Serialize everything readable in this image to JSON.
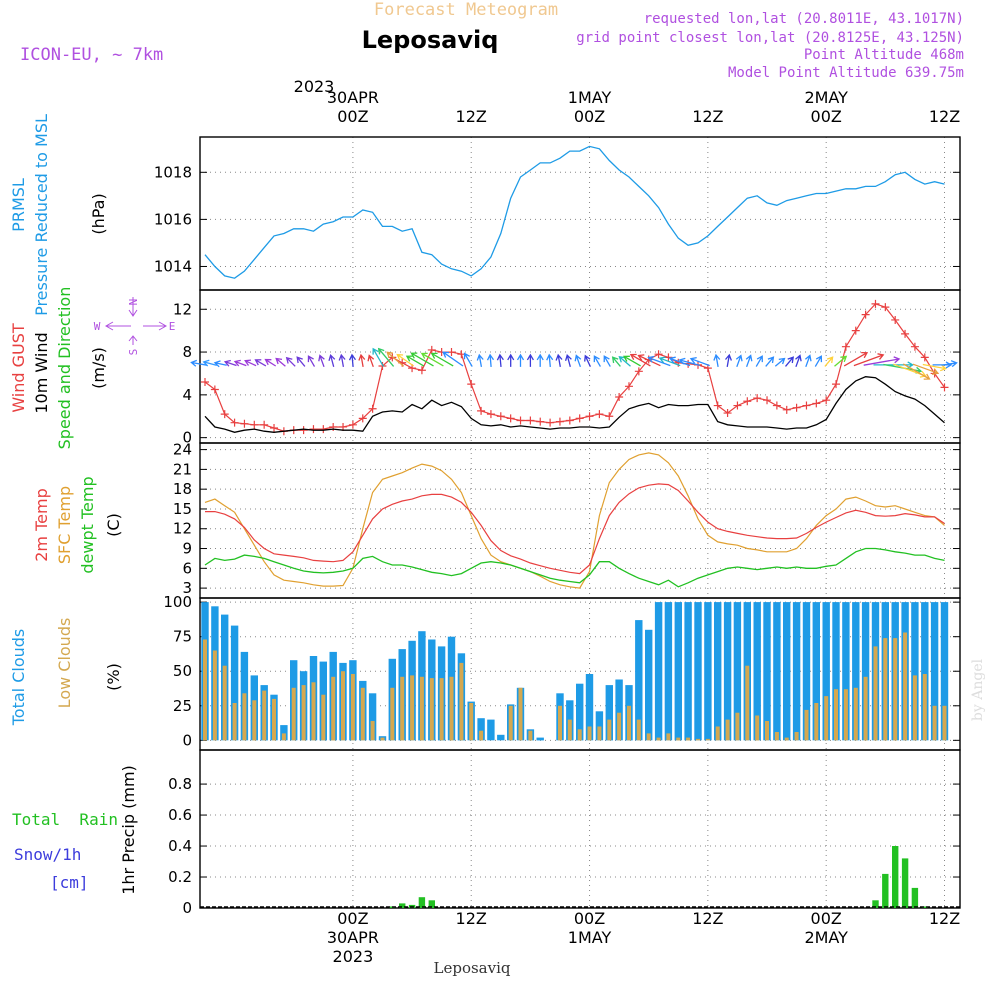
{
  "header": {
    "super_title": "Forecast Meteogram",
    "location": "Leposaviq",
    "model": "ICON-EU, ~ 7km",
    "requested": "requested lon,lat (20.8011E, 43.1017N)",
    "grid_point": "grid point closest lon,lat (20.8125E, 43.125N)",
    "point_altitude": "Point Altitude 468m",
    "model_altitude": "Model Point Altitude 639.75m"
  },
  "footer": {
    "location": "Leposaviq",
    "watermark": "by Angel"
  },
  "colors": {
    "pressure": "#1e9be6",
    "gust": "#e84040",
    "wind": "#000000",
    "sfc_temp": "#e0a030",
    "t2m": "#e84040",
    "dewpt": "#22c022",
    "total_clouds": "#1e9be6",
    "low_clouds": "#d4a850",
    "rain": "#22c022",
    "snow": "#3c3cdc",
    "purple": "#b050e0",
    "grid": "#888888"
  },
  "time_axis": {
    "top_year": "2023",
    "ticks": [
      {
        "t": 15,
        "top": [
          "30APR",
          "00Z"
        ],
        "bottom": [
          "00Z",
          "30APR",
          "2023"
        ]
      },
      {
        "t": 27,
        "top": [
          "12Z"
        ],
        "bottom": [
          "12Z"
        ]
      },
      {
        "t": 39,
        "top": [
          "1MAY",
          "00Z"
        ],
        "bottom": [
          "00Z",
          "1MAY"
        ]
      },
      {
        "t": 51,
        "top": [
          "12Z"
        ],
        "bottom": [
          "12Z"
        ]
      },
      {
        "t": 63,
        "top": [
          "2MAY",
          "00Z"
        ],
        "bottom": [
          "00Z",
          "2MAY"
        ]
      },
      {
        "t": 75,
        "top": [
          "12Z"
        ],
        "bottom": [
          "12Z"
        ]
      }
    ]
  },
  "chart_data": [
    {
      "type": "line",
      "panel": "pressure",
      "ylabel_lines": [
        "PRMSL",
        "Pressure Reduced to MSL"
      ],
      "unit": "(hPa)",
      "yticks": [
        "1014",
        "1016",
        "1018"
      ],
      "series": [
        {
          "values": [
            1014.5,
            1014.0,
            1013.6,
            1013.5,
            1013.8,
            1014.3,
            1014.8,
            1015.3,
            1015.4,
            1015.6,
            1015.6,
            1015.5,
            1015.8,
            1015.9,
            1016.1,
            1016.1,
            1016.4,
            1016.3,
            1015.7,
            1015.7,
            1015.5,
            1015.6,
            1014.6,
            1014.5,
            1014.1,
            1013.9,
            1013.8,
            1013.6,
            1013.9,
            1014.4,
            1015.4,
            1016.9,
            1017.8,
            1018.1,
            1018.4,
            1018.4,
            1018.6,
            1018.9,
            1018.9,
            1019.1,
            1019.0,
            1018.5,
            1018.1,
            1017.8,
            1017.4,
            1017.0,
            1016.5,
            1015.8,
            1015.2,
            1014.9,
            1015.0,
            1015.3,
            1015.7,
            1016.1,
            1016.5,
            1016.9,
            1017.0,
            1016.7,
            1016.6,
            1016.8,
            1016.9,
            1017.0,
            1017.1,
            1017.1,
            1017.2,
            1017.3,
            1017.3,
            1017.4,
            1017.4,
            1017.6,
            1017.9,
            1018.0,
            1017.7,
            1017.5,
            1017.6,
            1017.5
          ]
        }
      ]
    },
    {
      "type": "line",
      "panel": "wind",
      "ylabel_lines": [
        "Wind GUST",
        "10m Wind",
        "Speed and Direction"
      ],
      "unit": "(m/s)",
      "compass": {
        "n": "N",
        "s": "S",
        "w": "W",
        "e": "E"
      },
      "yticks": [
        "0",
        "4",
        "8",
        "12"
      ],
      "series": [
        {
          "name": "Wind GUST",
          "values": [
            5.2,
            4.5,
            2.2,
            1.4,
            1.3,
            1.2,
            1.2,
            0.9,
            0.6,
            0.7,
            0.7,
            0.8,
            0.8,
            1.0,
            1.0,
            1.2,
            1.8,
            2.7,
            6.7,
            7.5,
            7.0,
            6.5,
            6.3,
            8.2,
            8.0,
            8.0,
            7.8,
            5.0,
            2.5,
            2.2,
            2.0,
            1.8,
            1.6,
            1.6,
            1.5,
            1.4,
            1.5,
            1.6,
            1.8,
            2.0,
            2.2,
            2.0,
            3.8,
            4.8,
            6.2,
            7.3,
            7.8,
            7.5,
            7.0,
            6.9,
            6.8,
            6.5,
            3.0,
            2.3,
            3.0,
            3.4,
            3.7,
            3.5,
            3.0,
            2.6,
            2.8,
            3.0,
            3.2,
            3.5,
            5.0,
            8.5,
            10.0,
            11.5,
            12.5,
            12.2,
            11.0,
            9.7,
            8.5,
            7.5,
            6.0,
            4.7
          ]
        },
        {
          "name": "10m Wind",
          "values": [
            2.0,
            1.0,
            0.8,
            0.5,
            0.7,
            0.8,
            0.6,
            0.5,
            0.6,
            0.7,
            0.8,
            0.7,
            0.7,
            0.8,
            0.7,
            0.7,
            0.6,
            2.0,
            2.4,
            2.5,
            2.4,
            3.1,
            2.7,
            3.5,
            3.0,
            3.3,
            2.9,
            1.8,
            1.2,
            1.1,
            1.2,
            1.0,
            1.1,
            1.0,
            0.9,
            0.8,
            0.9,
            0.9,
            1.0,
            1.0,
            0.9,
            1.0,
            1.9,
            2.7,
            3.0,
            3.2,
            2.8,
            3.1,
            3.0,
            3.0,
            3.1,
            3.1,
            1.5,
            1.2,
            1.1,
            1.0,
            1.0,
            1.0,
            0.9,
            0.8,
            0.9,
            0.9,
            1.2,
            1.7,
            3.2,
            4.5,
            5.3,
            5.7,
            5.6,
            5.0,
            4.3,
            3.9,
            3.6,
            3.0,
            2.2,
            1.4
          ]
        }
      ],
      "arrow_dirs": [
        280,
        285,
        282,
        288,
        290,
        295,
        300,
        302,
        310,
        315,
        320,
        330,
        340,
        345,
        350,
        355,
        350,
        340,
        330,
        320,
        310,
        305,
        300,
        300,
        300,
        300,
        305,
        330,
        350,
        355,
        355,
        0,
        0,
        0,
        0,
        355,
        350,
        345,
        340,
        335,
        330,
        330,
        320,
        310,
        300,
        300,
        295,
        290,
        290,
        290,
        285,
        290,
        350,
        10,
        20,
        20,
        30,
        40,
        50,
        40,
        20,
        20,
        30,
        40,
        50,
        60,
        70,
        80,
        90,
        100,
        110,
        120,
        110,
        100,
        90,
        80
      ],
      "arrow_colors": [
        "#2c8cff",
        "#3399ff",
        "#2c8cff",
        "#7b3bd9",
        "#9b3bd9",
        "#9b3bd9",
        "#7b3bd9",
        "#9b3bd9",
        "#9b3bd9",
        "#7b3bd9",
        "#6a3bd9",
        "#7b3bd9",
        "#7b3bd9",
        "#5b3bd9",
        "#5b3bd9",
        "#3b3bd9",
        "#e63e3e",
        "#e63e3e",
        "#22b8c8",
        "#33cc66",
        "#e6a03e",
        "#ffd23c",
        "#33cc33",
        "#33cc33",
        "#66dd33",
        "#33cc33",
        "#2c8cff",
        "#2c8cff",
        "#2c8cff",
        "#2c8cff",
        "#3b3bd9",
        "#3b3bd9",
        "#2c8cff",
        "#3b3bd9",
        "#2c8cff",
        "#2c8cff",
        "#3b3bd9",
        "#3b3bd9",
        "#2c8cff",
        "#3b3bd9",
        "#2c8cff",
        "#2c8cff",
        "#33cc66",
        "#22b8c8",
        "#33cc33",
        "#e63e3e",
        "#e63e3e",
        "#2c8cff",
        "#22b8c8",
        "#2c8cff",
        "#2c8cff",
        "#2c8cff",
        "#2c8cff",
        "#3b3bd9",
        "#2c8cff",
        "#2c8cff",
        "#2c8cff",
        "#2c8cff",
        "#2c8cff",
        "#3b3bd9",
        "#3b3bd9",
        "#2c8cff",
        "#2c8cff",
        "#ffd23c",
        "#66dd33",
        "#e63e3e",
        "#e63e3e",
        "#9b3bd9",
        "#22b8c8",
        "#33cc66",
        "#ffd23c",
        "#e6a03e",
        "#e6a03e",
        "#ffd23c",
        "#2c8cff",
        "#2c8cff"
      ]
    },
    {
      "type": "line",
      "panel": "temperature",
      "ylabel_lines": [
        "2m Temp",
        "SFC Temp",
        "dewpt Temp"
      ],
      "unit": "(C)",
      "yticks": [
        "3",
        "6",
        "9",
        "12",
        "15",
        "18",
        "21",
        "24"
      ],
      "series": [
        {
          "name": "2m Temp",
          "values": [
            14.6,
            14.6,
            14.2,
            13.5,
            12.2,
            10.3,
            9.0,
            8.2,
            8.0,
            7.8,
            7.6,
            7.2,
            7.1,
            7.0,
            7.2,
            8.5,
            11.0,
            13.5,
            15.0,
            15.7,
            16.2,
            16.5,
            17.0,
            17.2,
            17.2,
            16.8,
            16.0,
            14.5,
            12.5,
            10.2,
            8.7,
            7.9,
            7.4,
            6.8,
            6.4,
            6.0,
            5.7,
            5.4,
            5.2,
            6.5,
            10.5,
            14.0,
            16.0,
            17.3,
            18.2,
            18.6,
            18.8,
            18.7,
            17.8,
            16.2,
            14.5,
            13.0,
            12.0,
            11.6,
            11.3,
            11.0,
            10.8,
            10.6,
            10.5,
            10.5,
            10.6,
            11.3,
            12.2,
            13.0,
            13.7,
            14.4,
            14.8,
            14.5,
            14.0,
            13.9,
            14.0,
            14.3,
            14.1,
            13.8,
            13.8,
            12.8
          ]
        },
        {
          "name": "SFC Temp",
          "values": [
            16.0,
            16.5,
            15.5,
            14.5,
            12.0,
            9.5,
            7.0,
            5.0,
            4.2,
            4.0,
            3.8,
            3.5,
            3.3,
            3.3,
            3.4,
            6.0,
            12.0,
            17.5,
            19.5,
            20.0,
            20.5,
            21.2,
            21.8,
            21.5,
            20.8,
            19.5,
            17.5,
            14.0,
            10.5,
            8.0,
            7.0,
            6.5,
            6.0,
            5.5,
            4.8,
            4.0,
            3.5,
            3.2,
            3.0,
            5.5,
            14.0,
            19.0,
            21.0,
            22.5,
            23.2,
            23.5,
            23.2,
            22.0,
            20.0,
            17.0,
            13.5,
            11.0,
            10.0,
            9.7,
            9.5,
            9.0,
            8.8,
            8.5,
            8.5,
            8.5,
            9.0,
            10.5,
            12.5,
            14.0,
            15.0,
            16.5,
            16.8,
            16.2,
            15.5,
            15.3,
            15.5,
            15.0,
            14.5,
            14.0,
            13.8,
            12.5
          ]
        },
        {
          "name": "dewpt Temp",
          "values": [
            6.5,
            7.5,
            7.2,
            7.4,
            8.0,
            7.8,
            7.5,
            7.0,
            6.5,
            6.0,
            5.6,
            5.4,
            5.3,
            5.4,
            5.6,
            6.0,
            7.5,
            7.8,
            7.0,
            6.5,
            6.5,
            6.2,
            5.8,
            5.4,
            5.2,
            4.9,
            5.2,
            6.0,
            6.8,
            7.0,
            6.8,
            6.5,
            6.0,
            5.5,
            5.0,
            4.5,
            4.2,
            4.0,
            3.8,
            5.0,
            7.0,
            7.0,
            6.0,
            5.2,
            4.5,
            4.0,
            3.5,
            4.2,
            3.2,
            3.8,
            4.5,
            5.0,
            5.5,
            6.0,
            6.2,
            6.0,
            5.8,
            6.0,
            6.2,
            6.0,
            6.2,
            6.0,
            6.0,
            6.3,
            6.5,
            7.5,
            8.5,
            9.0,
            9.0,
            8.8,
            8.5,
            8.3,
            8.0,
            8.0,
            7.5,
            7.2
          ]
        }
      ]
    },
    {
      "type": "bar",
      "panel": "clouds",
      "ylabel_lines": [
        "Total Clouds",
        "Low Clouds"
      ],
      "unit": "(%)",
      "yticks": [
        "0",
        "25",
        "50",
        "75",
        "100"
      ],
      "series": [
        {
          "name": "Total Clouds",
          "values": [
            100,
            97,
            91,
            83,
            64,
            47,
            40,
            33,
            11,
            58,
            50,
            61,
            57,
            64,
            56,
            58,
            43,
            34,
            3,
            59,
            66,
            72,
            79,
            73,
            68,
            75,
            63,
            28,
            16,
            15,
            4,
            26,
            38,
            8,
            2,
            0,
            34,
            29,
            41,
            48,
            21,
            40,
            44,
            40,
            87,
            80,
            100,
            100,
            100,
            100,
            100,
            100,
            100,
            100,
            100,
            100,
            100,
            100,
            100,
            100,
            100,
            100,
            100,
            100,
            100,
            100,
            100,
            100,
            100,
            100,
            100,
            100,
            100,
            100,
            100,
            100
          ]
        },
        {
          "name": "Low Clouds",
          "values": [
            73,
            65,
            54,
            27,
            34,
            29,
            36,
            30,
            5,
            38,
            40,
            42,
            33,
            46,
            50,
            48,
            38,
            14,
            2,
            38,
            46,
            47,
            46,
            45,
            45,
            46,
            56,
            27,
            7,
            0,
            0,
            25,
            38,
            7,
            0,
            0,
            25,
            15,
            8,
            10,
            10,
            15,
            20,
            25,
            15,
            5,
            2,
            5,
            2,
            2,
            1,
            1,
            10,
            15,
            20,
            54,
            18,
            14,
            6,
            2,
            6,
            22,
            27,
            32,
            37,
            37,
            38,
            46,
            68,
            74,
            74,
            78,
            47,
            48,
            25,
            25
          ]
        }
      ]
    },
    {
      "type": "bar",
      "panel": "precipitation",
      "ylabel_lines": [
        "1hr Precip (mm)"
      ],
      "legend": {
        "rain": "Total  Rain",
        "snow": "Snow/1h",
        "snow_unit": "[cm]"
      },
      "yticks": [
        "0",
        "0.2",
        "0.4",
        "0.6",
        "0.8"
      ],
      "series": [
        {
          "name": "Total  Rain",
          "values": [
            0,
            0,
            0,
            0,
            0,
            0,
            0,
            0,
            0,
            0,
            0,
            0,
            0,
            0,
            0,
            0,
            0,
            0,
            0,
            0.01,
            0.03,
            0.02,
            0.07,
            0.05,
            0,
            0,
            0,
            0,
            0,
            0,
            0,
            0,
            0,
            0,
            0,
            0,
            0,
            0,
            0,
            0,
            0,
            0,
            0,
            0,
            0,
            0,
            0,
            0,
            0,
            0,
            0,
            0,
            0,
            0,
            0,
            0,
            0,
            0,
            0,
            0,
            0,
            0,
            0,
            0,
            0,
            0,
            0,
            0,
            0.05,
            0.22,
            0.4,
            0.32,
            0.13,
            0.01,
            0,
            0
          ]
        }
      ]
    }
  ]
}
